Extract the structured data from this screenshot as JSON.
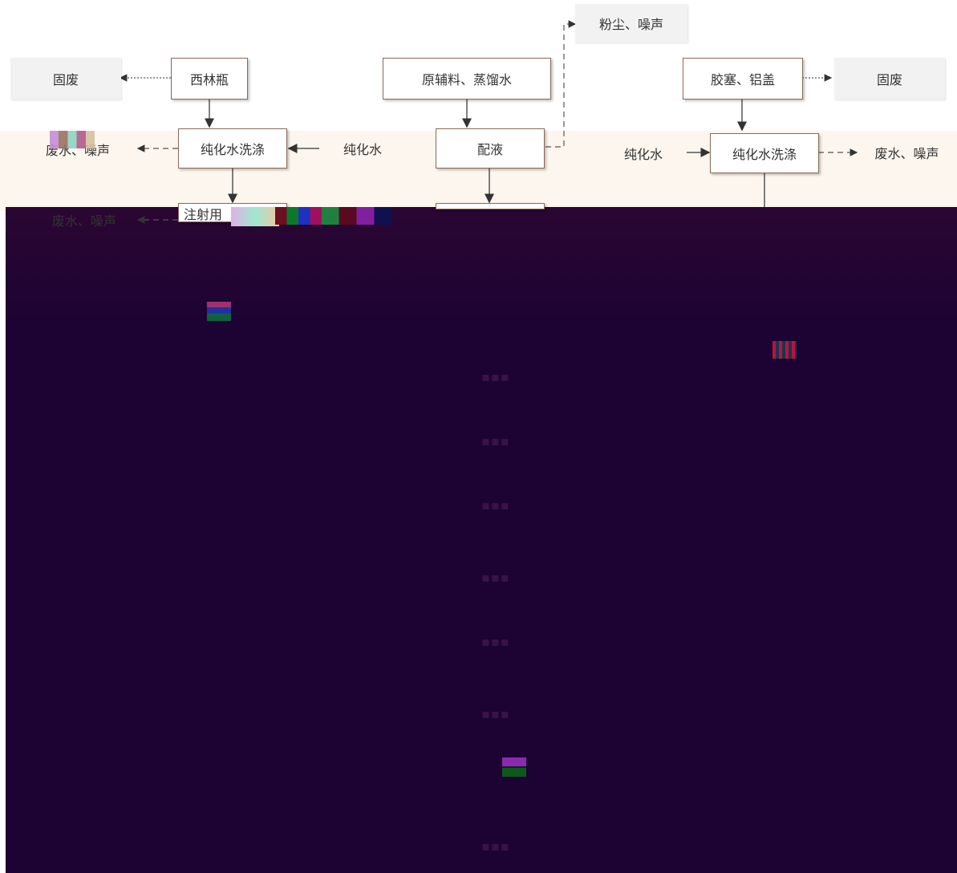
{
  "nodes": {
    "vial": "西林瓶",
    "raw": "原辅料、蒸馏水",
    "stopper": "胶塞、铝盖",
    "wash_left": "纯化水洗涤",
    "mix": "配液",
    "wash_right": "纯化水洗涤",
    "wfi": "注射用"
  },
  "side": {
    "solid_left": "固废",
    "solid_right": "固废",
    "dust": "粉尘、噪声",
    "pure_left": "纯化水",
    "pure_right": "纯化水",
    "waste_left": "废水、噪声",
    "waste_right": "废水、噪声",
    "waste_left2": "废水、噪声"
  },
  "colors": {
    "band": "#fdf6ee",
    "dark": "#1c0333",
    "box_border": "#8a6a5a"
  }
}
